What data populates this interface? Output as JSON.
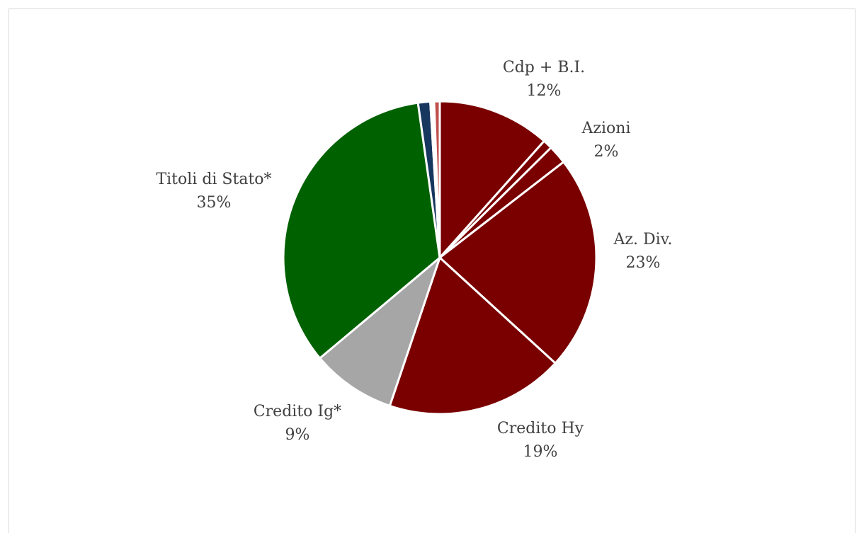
{
  "chart_data": {
    "type": "pie",
    "title": "",
    "slices": [
      {
        "name": "Cdp + B.I.",
        "value": 12,
        "label_value": "12%",
        "color": "#7a0000"
      },
      {
        "name": "",
        "value": 1,
        "label_value": "",
        "color": "#7a0000"
      },
      {
        "name": "Azioni",
        "value": 2,
        "label_value": "2%",
        "color": "#7a0000"
      },
      {
        "name": "Az. Div.",
        "value": 23,
        "label_value": "23%",
        "color": "#7a0000"
      },
      {
        "name": "Credito Hy",
        "value": 19,
        "label_value": "19%",
        "color": "#7a0000"
      },
      {
        "name": "Credito Ig*",
        "value": 9,
        "label_value": "9%",
        "color": "#a6a6a6"
      },
      {
        "name": "Titoli di Stato*",
        "value": 35,
        "label_value": "35%",
        "color": "#006100"
      },
      {
        "name": "",
        "value": 1.3,
        "label_value": "",
        "color": "#17375e"
      },
      {
        "name": "",
        "value": 0.4,
        "label_value": "",
        "color": "#ffffff"
      },
      {
        "name": "",
        "value": 0.6,
        "label_value": "",
        "color": "#c0504d"
      }
    ],
    "legend": "none",
    "label_placement": "outside"
  }
}
